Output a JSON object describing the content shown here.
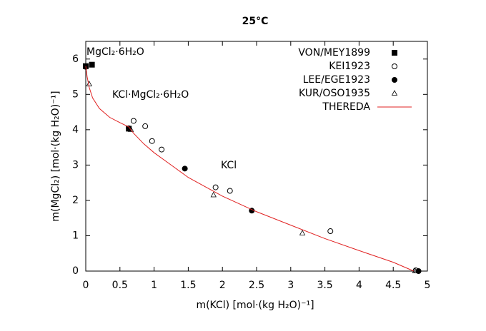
{
  "chart_data": {
    "type": "scatter",
    "title": "25°C",
    "x_label": "m(KCl) [mol·(kg H₂O)⁻¹]",
    "y_label": "m(MgCl₂) [mol·(kg H₂O)⁻¹]",
    "annotations": [
      "MgCl₂·6H₂O",
      "KCl·MgCl₂·6H₂O",
      "KCl"
    ],
    "xlim": [
      0,
      5
    ],
    "ylim": [
      0,
      6.5
    ],
    "xticks": [
      0,
      0.5,
      1,
      1.5,
      2,
      2.5,
      3,
      3.5,
      4,
      4.5,
      5
    ],
    "yticks": [
      0,
      1,
      2,
      3,
      4,
      5,
      6
    ],
    "legend": "top-right",
    "series": [
      {
        "name": "VON/MEY1899",
        "color": "#000000",
        "marker": "square",
        "filled": true,
        "x": [
          0,
          0.09,
          0.63
        ],
        "values": [
          5.8,
          5.84,
          4.03
        ]
      },
      {
        "name": "KEI1923",
        "color": "#000000",
        "marker": "circle",
        "filled": false,
        "x": [
          0.7,
          0.87,
          0.97,
          1.11,
          1.9,
          2.11,
          3.58,
          4.83
        ],
        "values": [
          4.25,
          4.1,
          3.68,
          3.44,
          2.37,
          2.27,
          1.13,
          0.02
        ]
      },
      {
        "name": "LEE/EGE1923",
        "color": "#000000",
        "marker": "circle",
        "filled": true,
        "x": [
          0,
          0.63,
          1.45,
          2.43,
          4.87
        ],
        "values": [
          5.78,
          4.04,
          2.9,
          1.71,
          0
        ]
      },
      {
        "name": "KUR/OSO1935",
        "color": "#000000",
        "marker": "triangle",
        "filled": false,
        "x": [
          0.05,
          0.66,
          1.87,
          3.17,
          4.82
        ],
        "values": [
          5.29,
          4.0,
          2.15,
          1.07,
          0
        ]
      },
      {
        "name": "THEREDA",
        "color": "#e02020",
        "marker": "line",
        "filled": false,
        "x": [
          0,
          0.02,
          0.05,
          0.1,
          0.2,
          0.35,
          0.5,
          0.63,
          0.7,
          0.85,
          1,
          1.25,
          1.5,
          2,
          2.5,
          3,
          3.5,
          4,
          4.5,
          4.8
        ],
        "values": [
          5.8,
          5.5,
          5.2,
          4.9,
          4.6,
          4.35,
          4.2,
          4.08,
          3.9,
          3.6,
          3.35,
          3.0,
          2.65,
          2.12,
          1.68,
          1.3,
          0.92,
          0.58,
          0.25,
          0
        ]
      }
    ]
  }
}
